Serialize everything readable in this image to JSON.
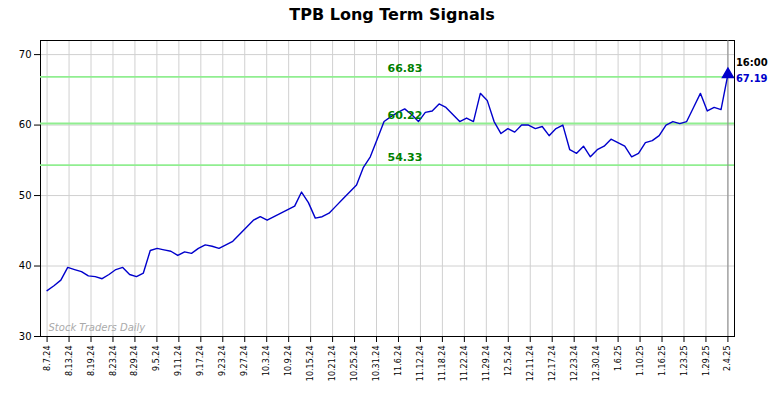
{
  "chart_data": {
    "type": "line",
    "title": "TPB Long Term Signals",
    "x": [
      0,
      0.3131,
      0.6263,
      0.9394,
      1.2525,
      1.5657,
      1.8788,
      2.1919,
      2.5051,
      2.8182,
      3.1313,
      3.4444,
      3.7576,
      4.0707,
      4.3838,
      4.697,
      5.0101,
      5.3232,
      5.6364,
      5.9495,
      6.2626,
      6.5758,
      6.8889,
      7.202,
      7.5152,
      7.8283,
      8.1414,
      8.4545,
      8.7677,
      9.0808,
      9.3939,
      9.7071,
      10.0202,
      10.3333,
      10.6465,
      10.9596,
      11.2727,
      11.5859,
      11.899,
      12.2121,
      12.5253,
      12.8384,
      13.1515,
      13.4646,
      13.7778,
      14.0909,
      14.404,
      14.7172,
      15.0303,
      15.3434,
      15.6566,
      15.9697,
      16.2828,
      16.596,
      16.9091,
      17.2222,
      17.5354,
      17.8485,
      18.1616,
      18.4747,
      18.7879,
      19.101,
      19.4141,
      19.7273,
      20.0404,
      20.3535,
      20.6667,
      20.9798,
      21.2929,
      21.6061,
      21.9192,
      22.2323,
      22.5455,
      22.8586,
      23.1717,
      23.4848,
      23.798,
      24.1111,
      24.4242,
      24.7374,
      25.0505,
      25.3636,
      25.6768,
      25.9899,
      26.303,
      26.6162,
      26.9293,
      27.2424,
      27.5556,
      27.8687,
      28.1818,
      28.4949,
      28.8081,
      29.1212,
      29.4343,
      29.7475,
      30.0606,
      30.3737,
      30.6869,
      31
    ],
    "values": [
      36.5,
      37.2,
      38.0,
      39.8,
      39.5,
      39.2,
      38.6,
      38.5,
      38.2,
      38.8,
      39.5,
      39.8,
      38.8,
      38.5,
      39.0,
      42.2,
      42.5,
      42.3,
      42.1,
      41.5,
      42.0,
      41.8,
      42.5,
      43.0,
      42.8,
      42.5,
      43.0,
      43.5,
      44.5,
      45.5,
      46.5,
      47.0,
      46.5,
      47.0,
      47.5,
      48.0,
      48.5,
      50.5,
      49.0,
      46.8,
      47.0,
      47.5,
      48.5,
      49.5,
      50.5,
      51.5,
      54.0,
      55.5,
      58.0,
      60.5,
      61.2,
      61.8,
      62.3,
      61.5,
      60.5,
      61.8,
      62.0,
      63.0,
      62.5,
      61.5,
      60.5,
      61.0,
      60.5,
      64.5,
      63.5,
      60.5,
      58.8,
      59.5,
      59.0,
      60.0,
      60.0,
      59.5,
      59.8,
      58.5,
      59.5,
      60.0,
      56.5,
      56.0,
      57.0,
      55.5,
      56.5,
      57.0,
      58.0,
      57.5,
      57.0,
      55.5,
      56.0,
      57.5,
      57.8,
      58.5,
      60.0,
      60.5,
      60.2,
      60.5,
      62.5,
      64.5,
      62.0,
      62.5,
      62.2,
      67.19
    ],
    "color": "#0000cc",
    "xlim": [
      -0.3,
      31.3
    ],
    "xticks": [
      {
        "value": 0,
        "label": "8.7.24"
      },
      {
        "value": 1,
        "label": "8.13.24"
      },
      {
        "value": 2,
        "label": "8.19.24"
      },
      {
        "value": 3,
        "label": "8.23.24"
      },
      {
        "value": 4,
        "label": "8.29.24"
      },
      {
        "value": 5,
        "label": "9.5.24"
      },
      {
        "value": 6,
        "label": "9.11.24"
      },
      {
        "value": 7,
        "label": "9.17.24"
      },
      {
        "value": 8,
        "label": "9.23.24"
      },
      {
        "value": 9,
        "label": "9.27.24"
      },
      {
        "value": 10,
        "label": "10.3.24"
      },
      {
        "value": 11,
        "label": "10.9.24"
      },
      {
        "value": 12,
        "label": "10.15.24"
      },
      {
        "value": 13,
        "label": "10.21.24"
      },
      {
        "value": 14,
        "label": "10.25.24"
      },
      {
        "value": 15,
        "label": "10.31.24"
      },
      {
        "value": 16,
        "label": "11.6.24"
      },
      {
        "value": 17,
        "label": "11.12.24"
      },
      {
        "value": 18,
        "label": "11.18.24"
      },
      {
        "value": 19,
        "label": "11.22.24"
      },
      {
        "value": 20,
        "label": "11.29.24"
      },
      {
        "value": 21,
        "label": "12.5.24"
      },
      {
        "value": 22,
        "label": "12.11.24"
      },
      {
        "value": 23,
        "label": "12.17.24"
      },
      {
        "value": 24,
        "label": "12.23.24"
      },
      {
        "value": 25,
        "label": "12.30.24"
      },
      {
        "value": 26,
        "label": "1.6.25"
      },
      {
        "value": 27,
        "label": "1.10.25"
      },
      {
        "value": 28,
        "label": "1.16.25"
      },
      {
        "value": 29,
        "label": "1.23.25"
      },
      {
        "value": 30,
        "label": "1.29.25"
      },
      {
        "value": 31,
        "label": "2.4.25"
      }
    ],
    "ylim": [
      30,
      72
    ],
    "yticks": [
      30,
      40,
      50,
      60,
      70
    ],
    "grid": true,
    "hlines": {
      "values": [
        54.33,
        60.22,
        66.83
      ],
      "color": "#90ee90",
      "label_color": "#008000"
    },
    "last_point": {
      "x": 31,
      "value": 67.19,
      "time": "16:00",
      "marker": "triangle",
      "line_color": "#888888"
    },
    "annotations": [
      {
        "text": "Stock Traders Daily"
      }
    ]
  }
}
